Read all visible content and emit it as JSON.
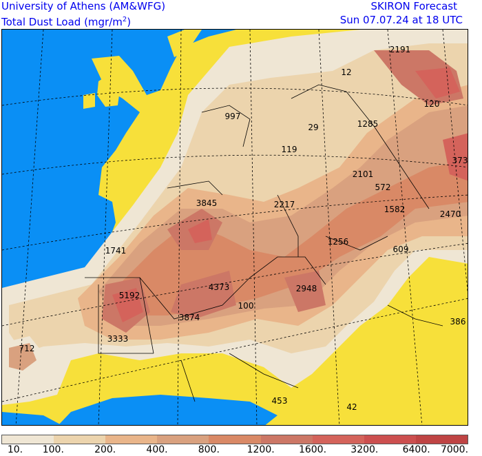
{
  "header": {
    "institution": "University of Athens (AM&WFG)",
    "variable_prefix": "Total Dust Load (mgr/m",
    "variable_sup": "2",
    "variable_suffix": ")",
    "model": "SKIRON Forecast",
    "valid_time": "Sun 07.07.24 at 18 UTC"
  },
  "colors": {
    "sea": "#0a8ff5",
    "land_no_dust": "#f7e03a",
    "border": "#000000",
    "grid": "#000000"
  },
  "legend": {
    "swatches": [
      "#efe6d4",
      "#ecd4ad",
      "#e9b58a",
      "#d9a17f",
      "#d98966",
      "#cc7766",
      "#d4635b",
      "#cc4f4f",
      "#bf4444"
    ],
    "labels": [
      "10.",
      "100.",
      "200.",
      "400.",
      "800.",
      "1200.",
      "1600.",
      "3200.",
      "6400.",
      "7000."
    ]
  },
  "map_labels": [
    {
      "text": "2191"
    },
    {
      "text": "12"
    },
    {
      "text": "997"
    },
    {
      "text": "120"
    },
    {
      "text": "29"
    },
    {
      "text": "1285"
    },
    {
      "text": "119"
    },
    {
      "text": "373"
    },
    {
      "text": "2101"
    },
    {
      "text": "572"
    },
    {
      "text": "3845"
    },
    {
      "text": "2217"
    },
    {
      "text": "1582"
    },
    {
      "text": "2470"
    },
    {
      "text": "1256"
    },
    {
      "text": "609"
    },
    {
      "text": "1741"
    },
    {
      "text": "5192"
    },
    {
      "text": "4373"
    },
    {
      "text": "2948"
    },
    {
      "text": "100"
    },
    {
      "text": "3874"
    },
    {
      "text": "386"
    },
    {
      "text": "3333"
    },
    {
      "text": "712"
    },
    {
      "text": "453"
    },
    {
      "text": "42"
    }
  ]
}
